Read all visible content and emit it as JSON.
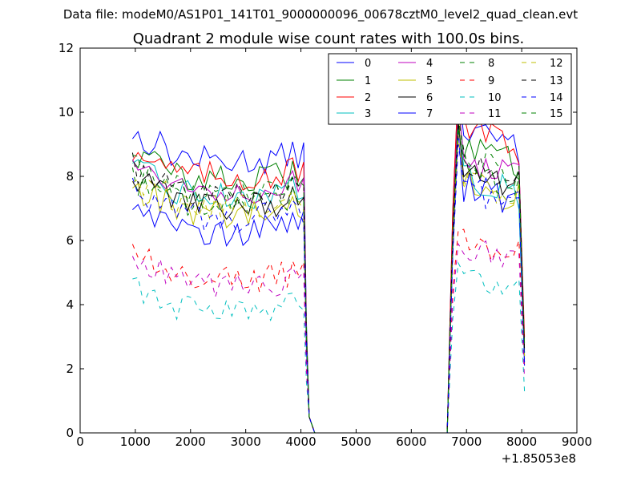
{
  "chart_data": {
    "type": "line",
    "suptitle": "Data file: modeM0/AS1P01_141T01_9000000096_00678cztM0_level2_quad_clean.evt",
    "title": "Quadrant 2 module wise count rates with 100.0s bins.",
    "xlabel": "",
    "ylabel": "",
    "x_offset_label": "+1.85053e8",
    "xlim": [
      0,
      9000
    ],
    "ylim": [
      0,
      12
    ],
    "xticks": [
      0,
      1000,
      2000,
      3000,
      4000,
      5000,
      6000,
      7000,
      8000,
      9000
    ],
    "yticks": [
      0,
      2,
      4,
      6,
      8,
      10,
      12
    ],
    "grid": false,
    "legend_position": "top-right",
    "series": [
      {
        "name": "0",
        "color": "#0000ff",
        "dash": "solid",
        "segment1_level": 8.7,
        "segment2_level": 9.2,
        "peak": 10.8,
        "end_drop": 2.5
      },
      {
        "name": "1",
        "color": "#008000",
        "dash": "solid",
        "segment1_level": 8.1,
        "segment2_level": 8.7,
        "peak": 10.2,
        "end_drop": 2.8
      },
      {
        "name": "2",
        "color": "#ff0000",
        "dash": "solid",
        "segment1_level": 8.2,
        "segment2_level": 9.2,
        "peak": 10.9,
        "end_drop": 3.0
      },
      {
        "name": "3",
        "color": "#00bfbf",
        "dash": "solid",
        "segment1_level": 7.6,
        "segment2_level": 7.8,
        "peak": 9.6,
        "end_drop": 2.2
      },
      {
        "name": "4",
        "color": "#bf00bf",
        "dash": "solid",
        "segment1_level": 7.8,
        "segment2_level": 8.2,
        "peak": 10.4,
        "end_drop": 2.6
      },
      {
        "name": "5",
        "color": "#bfbf00",
        "dash": "solid",
        "segment1_level": 7.0,
        "segment2_level": 7.6,
        "peak": 9.9,
        "end_drop": 2.3
      },
      {
        "name": "6",
        "color": "#000000",
        "dash": "solid",
        "segment1_level": 7.3,
        "segment2_level": 8.0,
        "peak": 9.7,
        "end_drop": 2.4
      },
      {
        "name": "7",
        "color": "#0000ff",
        "dash": "solid",
        "segment1_level": 6.5,
        "segment2_level": 7.4,
        "peak": 9.4,
        "end_drop": 2.1
      },
      {
        "name": "8",
        "color": "#008000",
        "dash": "dashed",
        "segment1_level": 7.3,
        "segment2_level": 7.9,
        "peak": 9.5,
        "end_drop": 2.5
      },
      {
        "name": "9",
        "color": "#ff0000",
        "dash": "dashed",
        "segment1_level": 5.0,
        "segment2_level": 5.9,
        "peak": 6.3,
        "end_drop": 2.0
      },
      {
        "name": "10",
        "color": "#00bfbf",
        "dash": "dashed",
        "segment1_level": 4.0,
        "segment2_level": 4.7,
        "peak": 5.3,
        "end_drop": 1.3
      },
      {
        "name": "11",
        "color": "#bf00bf",
        "dash": "dashed",
        "segment1_level": 4.8,
        "segment2_level": 5.5,
        "peak": 5.9,
        "end_drop": 1.7
      },
      {
        "name": "12",
        "color": "#bfbf00",
        "dash": "dashed",
        "segment1_level": 7.2,
        "segment2_level": 7.7,
        "peak": 9.3,
        "end_drop": 2.4
      },
      {
        "name": "13",
        "color": "#000000",
        "dash": "dashed",
        "segment1_level": 7.6,
        "segment2_level": 8.1,
        "peak": 9.8,
        "end_drop": 2.6
      },
      {
        "name": "14",
        "color": "#0000ff",
        "dash": "dashed",
        "segment1_level": 6.9,
        "segment2_level": 7.3,
        "peak": 9.0,
        "end_drop": 2.2
      },
      {
        "name": "15",
        "color": "#008000",
        "dash": "dashed",
        "segment1_level": 7.7,
        "segment2_level": 8.3,
        "peak": 9.9,
        "end_drop": 2.7
      }
    ],
    "time_segments": [
      {
        "start": 950,
        "end": 4050,
        "step": 100
      },
      {
        "start": 4150,
        "end": 4250,
        "step": 100
      },
      {
        "start": 6650,
        "end": 8050,
        "step": 100
      }
    ]
  }
}
